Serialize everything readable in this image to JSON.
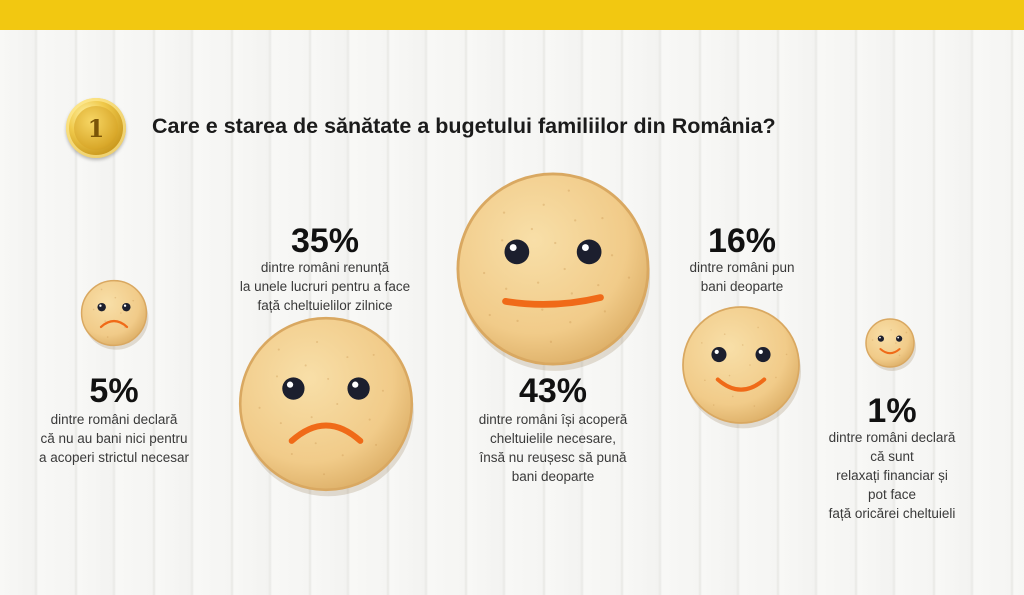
{
  "colors": {
    "accent_yellow": "#f2c811",
    "cookie_light": "#f6d69a",
    "cookie_dark": "#d9a861",
    "mouth_orange": "#f06a18",
    "eye_dark": "#1c1f2e",
    "title_text": "#1b1b1b"
  },
  "coin_number": "1",
  "title": "Care e starea de sănătate a bugetului familiilor din România?",
  "chart_data": {
    "type": "bubble",
    "title": "Care e starea de sănătate a bugetului familiilor din România?",
    "unit": "%",
    "items": [
      {
        "value": 5,
        "label": "5%",
        "mood": "sad",
        "description": "dintre români declară\ncă nu au bani nici pentru\na acoperi strictul necesar"
      },
      {
        "value": 35,
        "label": "35%",
        "mood": "sad",
        "description": "dintre români renunță\nla unele lucruri pentru a face\nfață cheltuielilor zilnice"
      },
      {
        "value": 43,
        "label": "43%",
        "mood": "neutral",
        "description": "dintre români își acoperă\ncheltuielile necesare,\nînsă nu reușesc să pună\nbani deoparte"
      },
      {
        "value": 16,
        "label": "16%",
        "mood": "happy",
        "description": "dintre români pun\nbani deoparte"
      },
      {
        "value": 1,
        "label": "1%",
        "mood": "happy",
        "description": "dintre români declară că sunt\nrelaxați financiar și pot face\nfață oricărei cheltuieli"
      }
    ]
  }
}
